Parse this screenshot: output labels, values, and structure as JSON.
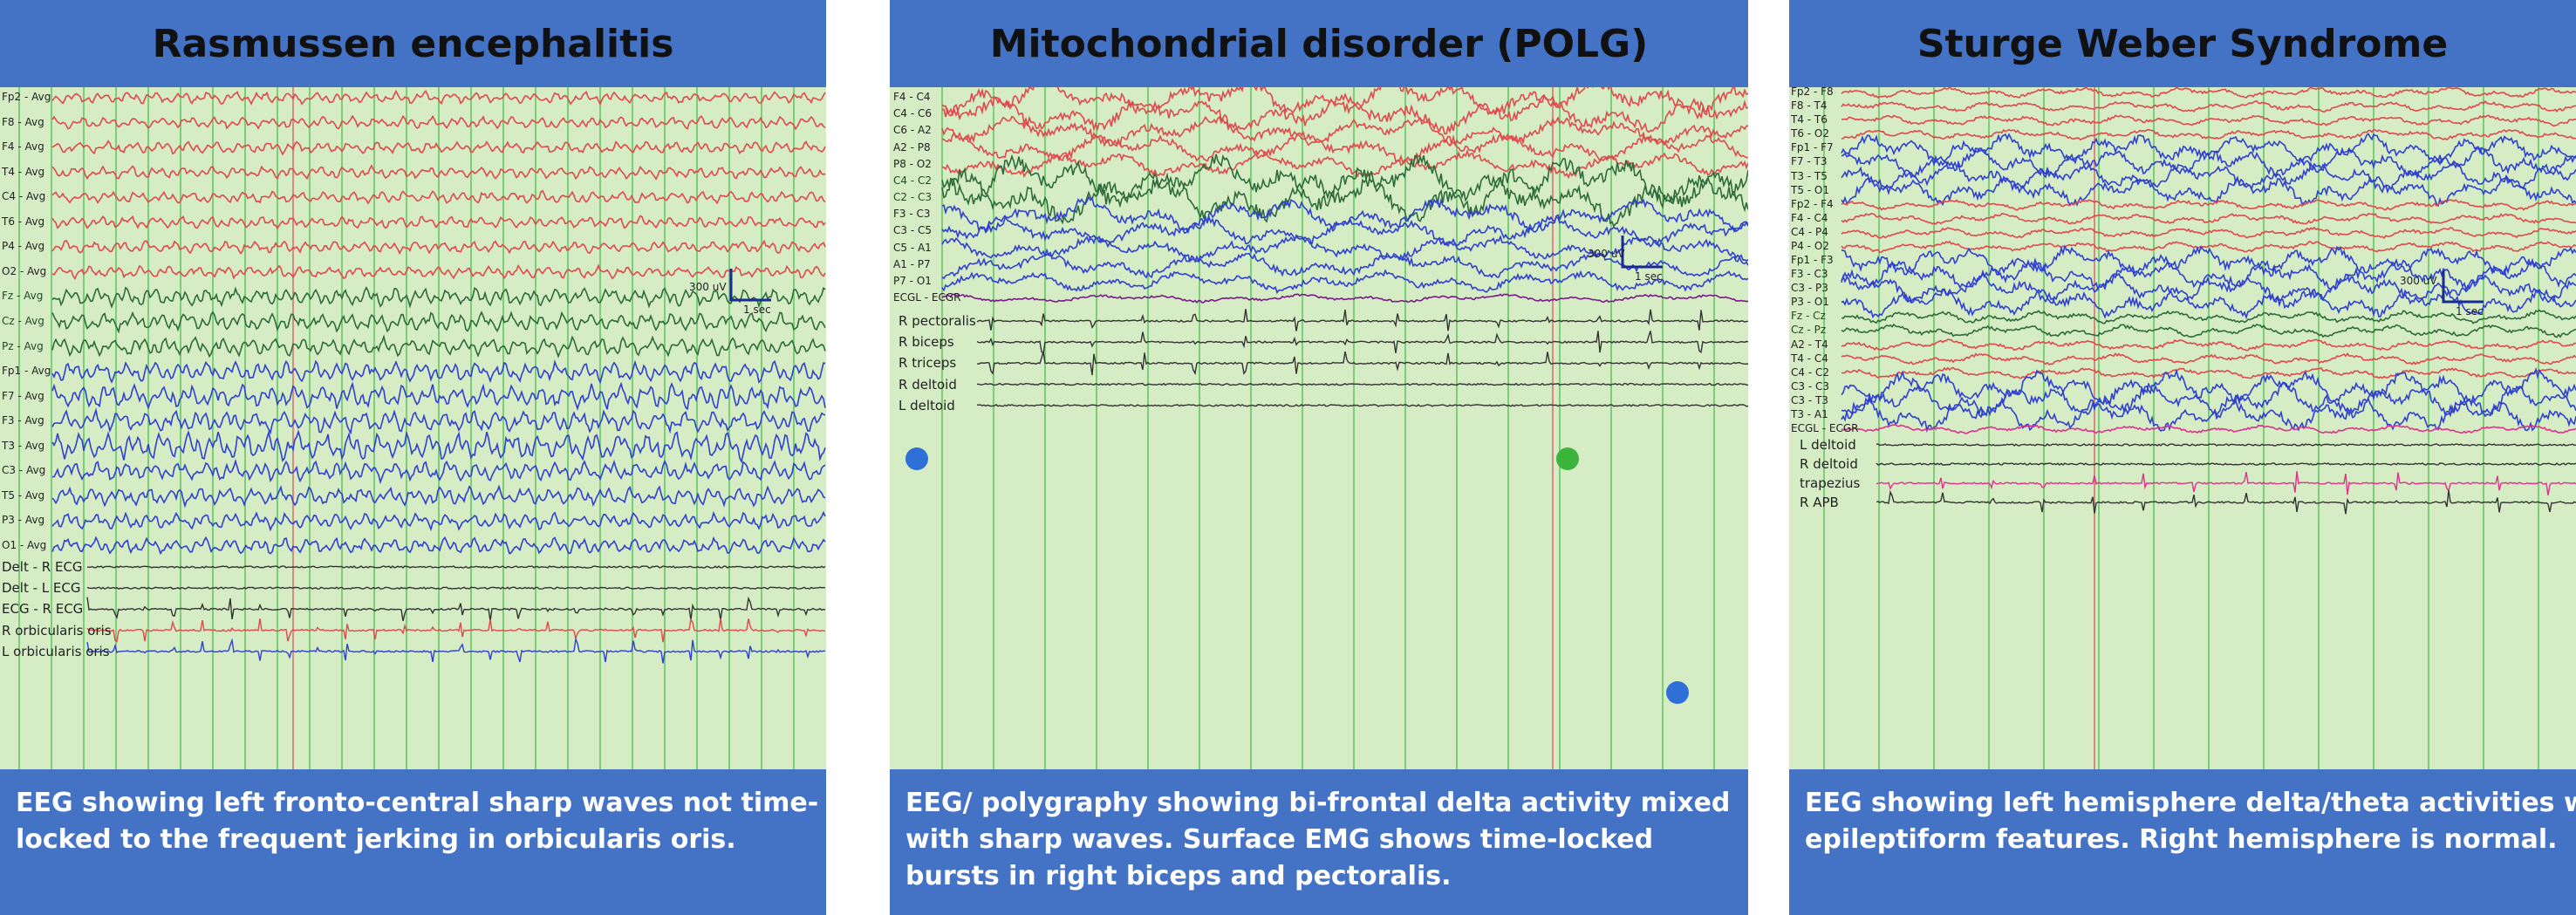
{
  "panels": [
    {
      "id": "rasmussen",
      "title": "Rasmussen encephalitis",
      "caption": [
        "EEG showing left fronto-central sharp waves not time-",
        "locked to the frequent jerking in orbicularis oris."
      ],
      "channels": [
        {
          "label": "Fp2 - Avg",
          "color": "red"
        },
        {
          "label": "F8 - Avg",
          "color": "red"
        },
        {
          "label": "F4 - Avg",
          "color": "red"
        },
        {
          "label": "T4 - Avg",
          "color": "red"
        },
        {
          "label": "C4 - Avg",
          "color": "red"
        },
        {
          "label": "T6 - Avg",
          "color": "red"
        },
        {
          "label": "P4 - Avg",
          "color": "red"
        },
        {
          "label": "O2 - Avg",
          "color": "red"
        },
        {
          "label": "Fz - Avg",
          "color": "green"
        },
        {
          "label": "Cz - Avg",
          "color": "green"
        },
        {
          "label": "Pz - Avg",
          "color": "green"
        },
        {
          "label": "Fp1 - Avg",
          "color": "blue"
        },
        {
          "label": "F7 - Avg",
          "color": "blue"
        },
        {
          "label": "F3 - Avg",
          "color": "blue"
        },
        {
          "label": "T3 - Avg",
          "color": "blue"
        },
        {
          "label": "C3 - Avg",
          "color": "blue"
        },
        {
          "label": "T5 - Avg",
          "color": "blue"
        },
        {
          "label": "P3 - Avg",
          "color": "blue"
        },
        {
          "label": "O1 - Avg",
          "color": "blue"
        }
      ],
      "emg": [
        {
          "label": "Delt - R ECG",
          "color": "black"
        },
        {
          "label": "Delt - L ECG",
          "color": "black"
        },
        {
          "label": "ECG - R ECG",
          "color": "black"
        },
        {
          "label": "R orbicularis oris",
          "color": "red"
        },
        {
          "label": "L orbicularis oris",
          "color": "blue"
        }
      ],
      "scale": {
        "amp": "300 uV",
        "time": "1 sec"
      }
    },
    {
      "id": "polg",
      "title": "Mitochondrial disorder (POLG)",
      "caption": [
        "EEG/ polygraphy showing bi-frontal delta activity mixed",
        "with sharp waves. Surface EMG shows time-locked",
        "bursts in right biceps and pectoralis."
      ],
      "channels": [
        {
          "label": "F4 - C4",
          "color": "red"
        },
        {
          "label": "C4 - C6",
          "color": "red"
        },
        {
          "label": "C6 - A2",
          "color": "red"
        },
        {
          "label": "A2 - P8",
          "color": "red"
        },
        {
          "label": "P8 - O2",
          "color": "red"
        },
        {
          "label": "C4 - C2",
          "color": "green"
        },
        {
          "label": "C2 - C3",
          "color": "green"
        },
        {
          "label": "F3 - C3",
          "color": "blue"
        },
        {
          "label": "C3 - C5",
          "color": "blue"
        },
        {
          "label": "C5 - A1",
          "color": "blue"
        },
        {
          "label": "A1 - P7",
          "color": "blue"
        },
        {
          "label": "P7 - O1",
          "color": "blue"
        },
        {
          "label": "ECGL - ECGR",
          "color": "purple"
        }
      ],
      "emg": [
        {
          "label": "R pectoralis",
          "color": "black"
        },
        {
          "label": "R biceps",
          "color": "black"
        },
        {
          "label": "R triceps",
          "color": "black"
        },
        {
          "label": "R deltoid",
          "color": "black"
        },
        {
          "label": "L deltoid",
          "color": "black"
        }
      ],
      "scale": {
        "amp": "300 uV",
        "time": "1 sec"
      }
    },
    {
      "id": "sturge",
      "title": "Sturge Weber Syndrome",
      "caption": [
        "EEG showing left hemisphere delta/theta activities with few",
        "epileptiform features. Right hemisphere is normal."
      ],
      "channels": [
        {
          "label": "Fp2 - F8",
          "color": "red"
        },
        {
          "label": "F8 - T4",
          "color": "red"
        },
        {
          "label": "T4 - T6",
          "color": "red"
        },
        {
          "label": "T6 - O2",
          "color": "red"
        },
        {
          "label": "Fp1 - F7",
          "color": "blue"
        },
        {
          "label": "F7 - T3",
          "color": "blue"
        },
        {
          "label": "T3 - T5",
          "color": "blue"
        },
        {
          "label": "T5 - O1",
          "color": "blue"
        },
        {
          "label": "Fp2 - F4",
          "color": "red"
        },
        {
          "label": "F4 - C4",
          "color": "red"
        },
        {
          "label": "C4 - P4",
          "color": "red"
        },
        {
          "label": "P4 - O2",
          "color": "red"
        },
        {
          "label": "Fp1 - F3",
          "color": "blue"
        },
        {
          "label": "F3 - C3",
          "color": "blue"
        },
        {
          "label": "C3 - P3",
          "color": "blue"
        },
        {
          "label": "P3 - O1",
          "color": "blue"
        },
        {
          "label": "Fz - Cz",
          "color": "green"
        },
        {
          "label": "Cz - Pz",
          "color": "green"
        },
        {
          "label": "A2 - T4",
          "color": "red"
        },
        {
          "label": "T4 - C4",
          "color": "red"
        },
        {
          "label": "C4 - C2",
          "color": "red"
        },
        {
          "label": "C3 - C3",
          "color": "blue"
        },
        {
          "label": "C3 - T3",
          "color": "blue"
        },
        {
          "label": "T3 - A1",
          "color": "blue"
        },
        {
          "label": "ECGL - ECGR",
          "color": "magenta"
        }
      ],
      "emg": [
        {
          "label": "L deltoid",
          "color": "black"
        },
        {
          "label": "R deltoid",
          "color": "black"
        },
        {
          "label": "trapezius",
          "color": "magenta"
        },
        {
          "label": "R APB",
          "color": "black"
        }
      ],
      "scale": {
        "amp": "300 uV",
        "time": "1 sec"
      }
    }
  ],
  "colors": {
    "header": "#4472c4",
    "background": "#d5ecc5",
    "grid": "#5cc45c",
    "red": "#e0484c",
    "blue": "#2f3fd0",
    "green": "#2e6b3a",
    "purple": "#7a1a8a",
    "magenta": "#e0308c",
    "black": "#333333",
    "dot_blue": "#2f6fd8",
    "dot_green": "#3cb43c"
  }
}
